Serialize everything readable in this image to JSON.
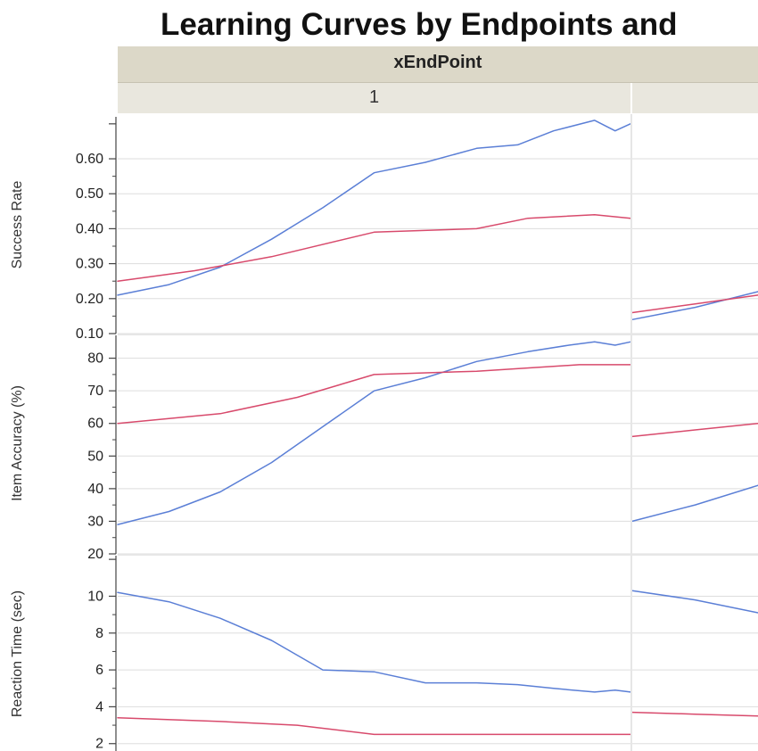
{
  "title": "Learning Curves by Endpoints and",
  "facet": {
    "label": "xEndPoint",
    "columns": [
      "1",
      ""
    ]
  },
  "colors": {
    "blue": "#5b7fd6",
    "red": "#d84a6c",
    "grid": "#dddddd",
    "axis": "#444444"
  },
  "chart_data": [
    {
      "type": "line",
      "ylabel": "Success Rate",
      "yticks": [
        "0.10",
        "0.20",
        "0.30",
        "0.40",
        "0.50",
        "0.60"
      ],
      "tick_values": [
        0.1,
        0.2,
        0.3,
        0.4,
        0.5,
        0.6
      ],
      "ylim": [
        0.1,
        0.72
      ],
      "panels": [
        {
          "column": "1",
          "series": [
            {
              "color": "blue",
              "x": [
                0,
                0.1,
                0.2,
                0.3,
                0.4,
                0.5,
                0.6,
                0.7,
                0.78,
                0.85,
                0.93,
                0.97,
                1.0
              ],
              "values": [
                0.21,
                0.24,
                0.29,
                0.37,
                0.46,
                0.56,
                0.59,
                0.63,
                0.64,
                0.68,
                0.71,
                0.68,
                0.7
              ]
            },
            {
              "color": "red",
              "x": [
                0,
                0.15,
                0.3,
                0.5,
                0.7,
                0.8,
                0.93,
                1.0
              ],
              "values": [
                0.25,
                0.28,
                0.32,
                0.39,
                0.4,
                0.43,
                0.44,
                0.43
              ]
            }
          ]
        },
        {
          "column": "",
          "series": [
            {
              "color": "blue",
              "x": [
                0,
                0.5,
                1.0
              ],
              "values": [
                0.14,
                0.175,
                0.22
              ]
            },
            {
              "color": "red",
              "x": [
                0,
                0.5,
                1.0
              ],
              "values": [
                0.16,
                0.185,
                0.21
              ]
            }
          ]
        }
      ]
    },
    {
      "type": "line",
      "ylabel": "Item Accuracy (%)",
      "yticks": [
        "20",
        "30",
        "40",
        "50",
        "60",
        "70",
        "80"
      ],
      "tick_values": [
        20,
        30,
        40,
        50,
        60,
        70,
        80
      ],
      "ylim": [
        20,
        87
      ],
      "panels": [
        {
          "column": "1",
          "series": [
            {
              "color": "blue",
              "x": [
                0,
                0.1,
                0.2,
                0.3,
                0.4,
                0.5,
                0.6,
                0.7,
                0.8,
                0.88,
                0.93,
                0.97,
                1.0
              ],
              "values": [
                29,
                33,
                39,
                48,
                59,
                70,
                74,
                79,
                82,
                84,
                85,
                84,
                85
              ]
            },
            {
              "color": "red",
              "x": [
                0,
                0.2,
                0.35,
                0.5,
                0.7,
                0.9,
                1.0
              ],
              "values": [
                60,
                63,
                68,
                75,
                76,
                78,
                78
              ]
            }
          ]
        },
        {
          "column": "",
          "series": [
            {
              "color": "blue",
              "x": [
                0,
                0.5,
                1.0
              ],
              "values": [
                30,
                35,
                41
              ]
            },
            {
              "color": "red",
              "x": [
                0,
                0.5,
                1.0
              ],
              "values": [
                56,
                58,
                60
              ]
            }
          ]
        }
      ]
    },
    {
      "type": "line",
      "ylabel": "Reaction Time (sec)",
      "yticks": [
        "2",
        "4",
        "6",
        "8",
        "10"
      ],
      "tick_values": [
        2,
        4,
        6,
        8,
        10
      ],
      "ylim": [
        1.6,
        12.2
      ],
      "panels": [
        {
          "column": "1",
          "series": [
            {
              "color": "blue",
              "x": [
                0,
                0.1,
                0.2,
                0.3,
                0.4,
                0.5,
                0.6,
                0.7,
                0.78,
                0.85,
                0.93,
                0.97,
                1.0
              ],
              "values": [
                10.2,
                9.7,
                8.8,
                7.6,
                6.0,
                5.9,
                5.3,
                5.3,
                5.2,
                5.0,
                4.8,
                4.9,
                4.8
              ]
            },
            {
              "color": "red",
              "x": [
                0,
                0.2,
                0.35,
                0.5,
                0.7,
                0.9,
                1.0
              ],
              "values": [
                3.4,
                3.2,
                3.0,
                2.5,
                2.5,
                2.5,
                2.5
              ]
            }
          ]
        },
        {
          "column": "",
          "series": [
            {
              "color": "blue",
              "x": [
                0,
                0.5,
                1.0
              ],
              "values": [
                10.3,
                9.8,
                9.1
              ]
            },
            {
              "color": "red",
              "x": [
                0,
                0.5,
                1.0
              ],
              "values": [
                3.7,
                3.6,
                3.5
              ]
            }
          ]
        }
      ]
    }
  ]
}
